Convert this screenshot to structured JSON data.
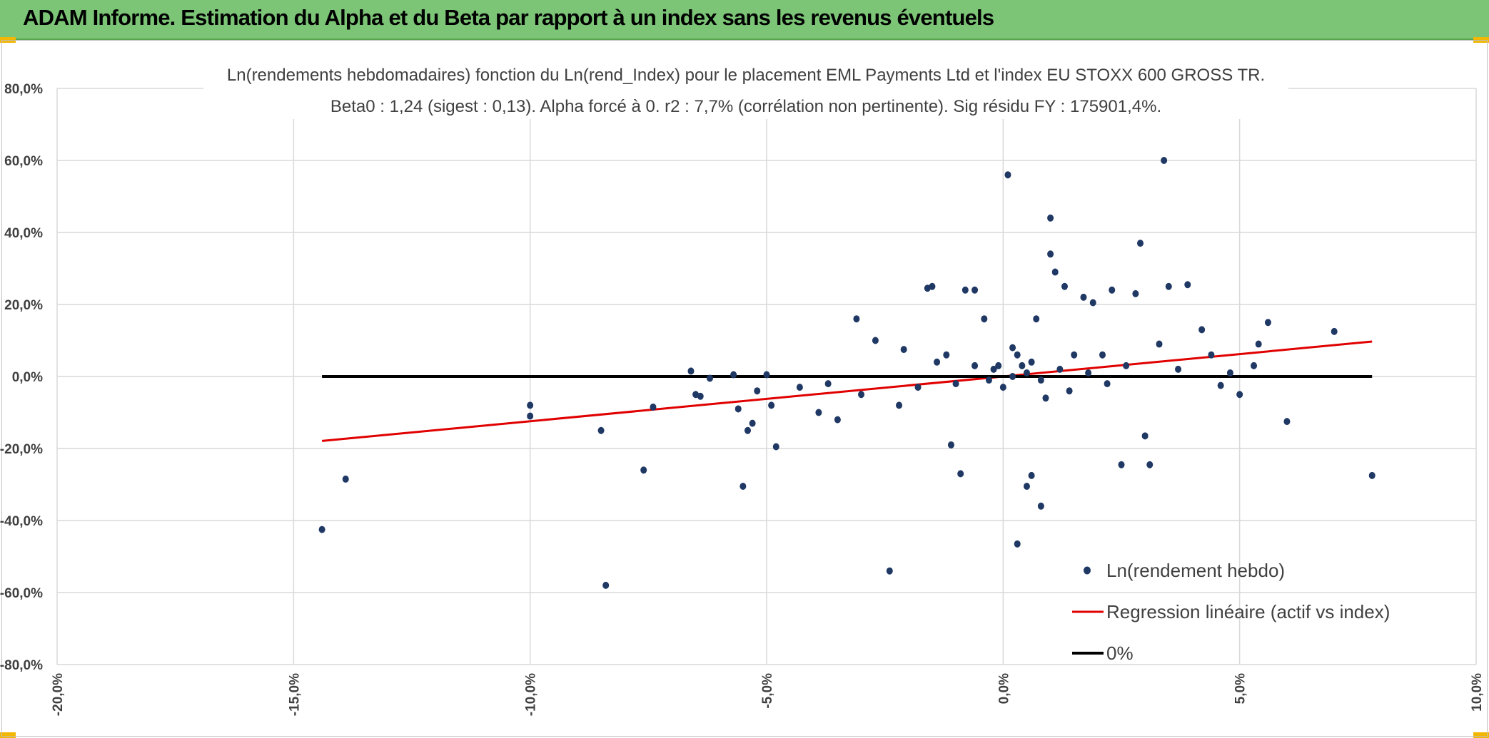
{
  "banner": {
    "title": "ADAM Informe. Estimation du Alpha et du Beta par rapport à un index sans les revenus éventuels"
  },
  "chart_data": {
    "type": "scatter",
    "title": "Ln(rendements hebdomadaires) fonction du Ln(rend_Index) pour le placement EML Payments Ltd et l'index EU STOXX 600 GROSS TR.",
    "subtitle": "Beta0 : 1,24 (sigest : 0,13). Alpha forcé à 0. r2 : 7,7% (corrélation non pertinente). Sig résidu FY : 175901,4%.",
    "xlim": [
      -20,
      10
    ],
    "ylim": [
      -80,
      80
    ],
    "x_ticks": [
      -20,
      -15,
      -10,
      -5,
      0,
      5,
      10
    ],
    "y_ticks": [
      -80,
      -60,
      -40,
      -20,
      0,
      20,
      40,
      60,
      80
    ],
    "x_tick_labels": [
      "-20,0%",
      "-15,0%",
      "-10,0%",
      "-5,0%",
      "0,0%",
      "5,0%",
      "10,0%"
    ],
    "y_tick_labels": [
      "-80,0%",
      "-60,0%",
      "-40,0%",
      "-20,0%",
      "0,0%",
      "20,0%",
      "40,0%",
      "60,0%",
      "80,0%"
    ],
    "grid": true,
    "legend_position": "bottom-right",
    "colors": {
      "points": "#1f3864",
      "regression": "#e00000",
      "zero": "#000000",
      "banner": "#7cc577",
      "grid": "#d9d9d9"
    },
    "series": [
      {
        "name": "Ln(rendement hebdo)",
        "kind": "scatter",
        "points": [
          [
            -14.4,
            -42.5
          ],
          [
            -13.9,
            -28.5
          ],
          [
            -10,
            -8
          ],
          [
            -10,
            -11
          ],
          [
            -8.5,
            -15
          ],
          [
            -8.4,
            -58
          ],
          [
            -7.6,
            -26
          ],
          [
            -7.4,
            -8.5
          ],
          [
            -6.6,
            1.5
          ],
          [
            -6.5,
            -5
          ],
          [
            -6.4,
            -5.5
          ],
          [
            -6.2,
            -0.5
          ],
          [
            -5.7,
            0.5
          ],
          [
            -5.6,
            -9
          ],
          [
            -5.5,
            -30.5
          ],
          [
            -5.3,
            -13
          ],
          [
            -5.4,
            -15
          ],
          [
            -5.2,
            -4
          ],
          [
            -5,
            0.5
          ],
          [
            -4.9,
            -8
          ],
          [
            -4.8,
            -19.5
          ],
          [
            -4.3,
            -3
          ],
          [
            -3.9,
            -10
          ],
          [
            -3.7,
            -2
          ],
          [
            -3.5,
            -12
          ],
          [
            -3.1,
            16
          ],
          [
            -3,
            -5
          ],
          [
            -2.7,
            10
          ],
          [
            -2.4,
            -54
          ],
          [
            -2.2,
            -8
          ],
          [
            -2.1,
            7.5
          ],
          [
            -1.8,
            -3
          ],
          [
            -1.6,
            24.5
          ],
          [
            -1.5,
            25
          ],
          [
            -1.2,
            6
          ],
          [
            -1.1,
            -19
          ],
          [
            -0.9,
            -27
          ],
          [
            -0.8,
            24
          ],
          [
            -0.6,
            24
          ],
          [
            -0.4,
            16
          ],
          [
            -0.2,
            2
          ],
          [
            -0.1,
            3
          ],
          [
            0,
            -3
          ],
          [
            0.1,
            56
          ],
          [
            0.2,
            8
          ],
          [
            0.3,
            -46.5
          ],
          [
            0.4,
            3
          ],
          [
            0.5,
            -30.5
          ],
          [
            0.6,
            -27.5
          ],
          [
            0.7,
            16
          ],
          [
            0.8,
            -36
          ],
          [
            1,
            34
          ],
          [
            1,
            44
          ],
          [
            1.1,
            29
          ],
          [
            1.3,
            25
          ],
          [
            1.5,
            6
          ],
          [
            1.7,
            22
          ],
          [
            1.9,
            20.5
          ],
          [
            2.1,
            6
          ],
          [
            2.3,
            24
          ],
          [
            2.5,
            -24.5
          ],
          [
            2.6,
            3
          ],
          [
            2.8,
            23
          ],
          [
            2.9,
            37
          ],
          [
            3,
            -16.5
          ],
          [
            3.1,
            -24.5
          ],
          [
            3.3,
            9
          ],
          [
            3.4,
            60
          ],
          [
            3.5,
            25
          ],
          [
            3.7,
            2
          ],
          [
            3.9,
            25.5
          ],
          [
            4.2,
            13
          ],
          [
            4.4,
            6
          ],
          [
            4.6,
            -2.5
          ],
          [
            4.8,
            1
          ],
          [
            5,
            -5
          ],
          [
            5.3,
            3
          ],
          [
            5.4,
            9
          ],
          [
            5.6,
            15
          ],
          [
            6,
            -12.5
          ],
          [
            7,
            12.5
          ],
          [
            7.8,
            -27.5
          ],
          [
            0.2,
            0
          ],
          [
            0.5,
            1
          ],
          [
            0.8,
            -1
          ],
          [
            1.2,
            2
          ],
          [
            -0.3,
            -1
          ],
          [
            0.6,
            4
          ],
          [
            1.4,
            -4
          ],
          [
            -0.6,
            3
          ],
          [
            0.9,
            -6
          ],
          [
            1.8,
            1
          ],
          [
            -1,
            -2
          ],
          [
            0.3,
            6
          ],
          [
            2.2,
            -2
          ],
          [
            -1.4,
            4
          ]
        ]
      },
      {
        "name": "Regression linéaire (actif vs index)",
        "kind": "line",
        "x": [
          -14.4,
          7.8
        ],
        "y": [
          -17.9,
          9.7
        ]
      },
      {
        "name": "0%",
        "kind": "line",
        "x": [
          -14.4,
          7.8
        ],
        "y": [
          0,
          0
        ]
      }
    ]
  }
}
